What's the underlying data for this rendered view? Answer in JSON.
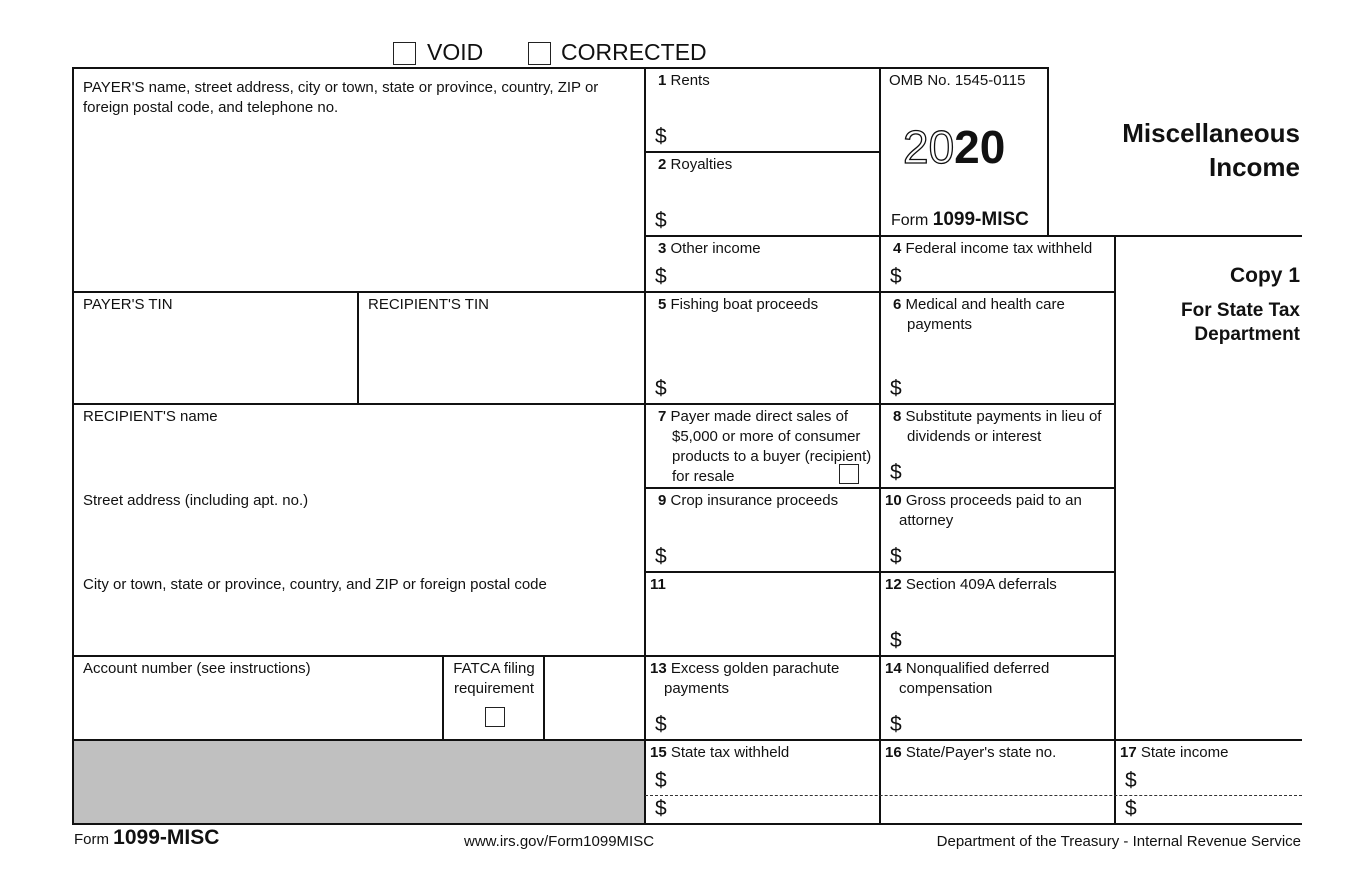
{
  "header": {
    "void_label": "VOID",
    "corrected_label": "CORRECTED"
  },
  "payer": {
    "name_label": "PAYER'S name, street address, city or town, state or province, country, ZIP or foreign postal code, and telephone no.",
    "tin_label": "PAYER'S TIN"
  },
  "recipient": {
    "tin_label": "RECIPIENT'S TIN",
    "name_label": "RECIPIENT'S name",
    "street_label": "Street address (including apt. no.)",
    "city_label": "City or town, state or province, country, and ZIP or foreign postal code",
    "account_label": "Account number (see instructions)",
    "fatca_label": "FATCA filing requirement"
  },
  "omb": {
    "label": "OMB No. 1545-0115",
    "year_outline": "20",
    "year_bold": "20",
    "form_prefix": "Form",
    "form_name": "1099-MISC"
  },
  "title": {
    "line1": "Miscellaneous",
    "line2": "Income",
    "copy": "Copy 1",
    "copy_for1": "For State Tax",
    "copy_for2": "Department"
  },
  "currency": "$",
  "boxes": {
    "b1": {
      "n": "1",
      "label": "Rents"
    },
    "b2": {
      "n": "2",
      "label": "Royalties"
    },
    "b3": {
      "n": "3",
      "label": "Other income"
    },
    "b4": {
      "n": "4",
      "label": "Federal income tax withheld"
    },
    "b5": {
      "n": "5",
      "label": "Fishing boat proceeds"
    },
    "b6": {
      "n": "6",
      "label": "Medical and health care payments"
    },
    "b7": {
      "n": "7",
      "label": "Payer made direct sales of $5,000 or more of consumer products to a buyer (recipient) for resale"
    },
    "b8": {
      "n": "8",
      "label": "Substitute payments in lieu of dividends or interest"
    },
    "b9": {
      "n": "9",
      "label": "Crop insurance proceeds"
    },
    "b10": {
      "n": "10",
      "label": "Gross proceeds paid to an attorney"
    },
    "b11": {
      "n": "11",
      "label": ""
    },
    "b12": {
      "n": "12",
      "label": "Section 409A deferrals"
    },
    "b13": {
      "n": "13",
      "label": "Excess golden parachute payments"
    },
    "b14": {
      "n": "14",
      "label": "Nonqualified deferred compensation"
    },
    "b15": {
      "n": "15",
      "label": "State tax withheld"
    },
    "b16": {
      "n": "16",
      "label": "State/Payer's state no."
    },
    "b17": {
      "n": "17",
      "label": "State income"
    }
  },
  "footer": {
    "form_prefix": "Form",
    "form_name": "1099-MISC",
    "url": "www.irs.gov/Form1099MISC",
    "agency": "Department of the Treasury - Internal Revenue Service"
  }
}
